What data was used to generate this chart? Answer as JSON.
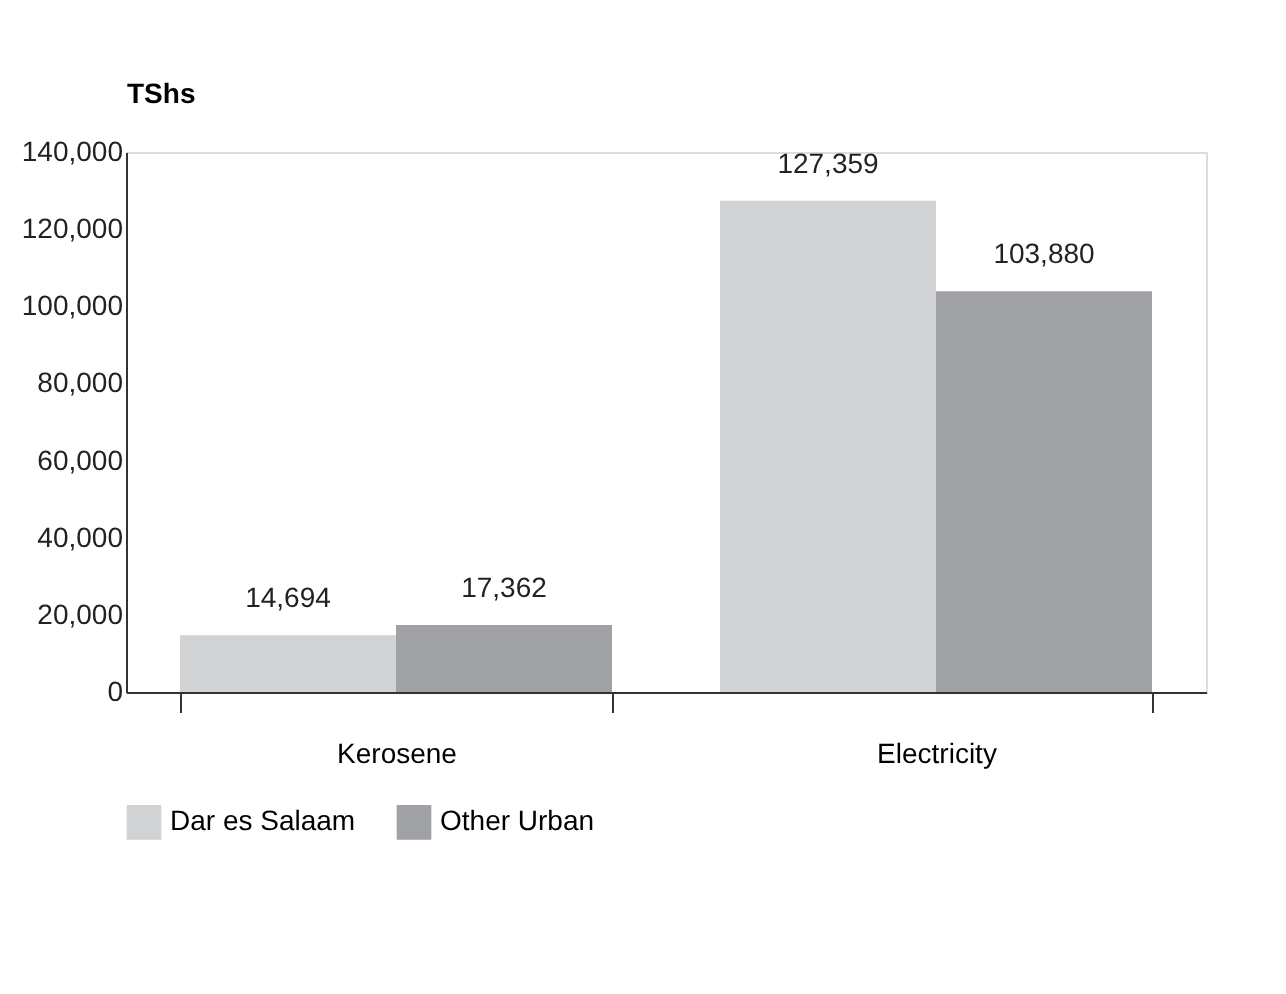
{
  "chart_data": {
    "type": "bar",
    "ylabel": "TShs",
    "categories": [
      "Kerosene",
      "Electricity"
    ],
    "series": [
      {
        "name": "Dar es Salaam",
        "color": "#d1d2d4",
        "values": [
          14694,
          127359
        ],
        "value_labels": [
          "14,694",
          "127,359"
        ]
      },
      {
        "name": "Other Urban",
        "color": "#a0a1a4",
        "values": [
          17362,
          103880
        ],
        "value_labels": [
          "17,362",
          "103,880"
        ]
      }
    ],
    "ylim": [
      0,
      140000
    ],
    "yticks": [
      0,
      {
        "value": 20000,
        "label": "20,000"
      },
      {
        "value": 40000,
        "label": "40,000"
      },
      {
        "value": 60000,
        "label": "60,000"
      },
      {
        "value": 80000,
        "label": "80,000"
      },
      {
        "value": 100000,
        "label": "100,000"
      },
      {
        "value": 120000,
        "label": "120,000"
      },
      {
        "value": 140000,
        "label": "140,000"
      }
    ],
    "grid": false,
    "legend": "bottom"
  }
}
